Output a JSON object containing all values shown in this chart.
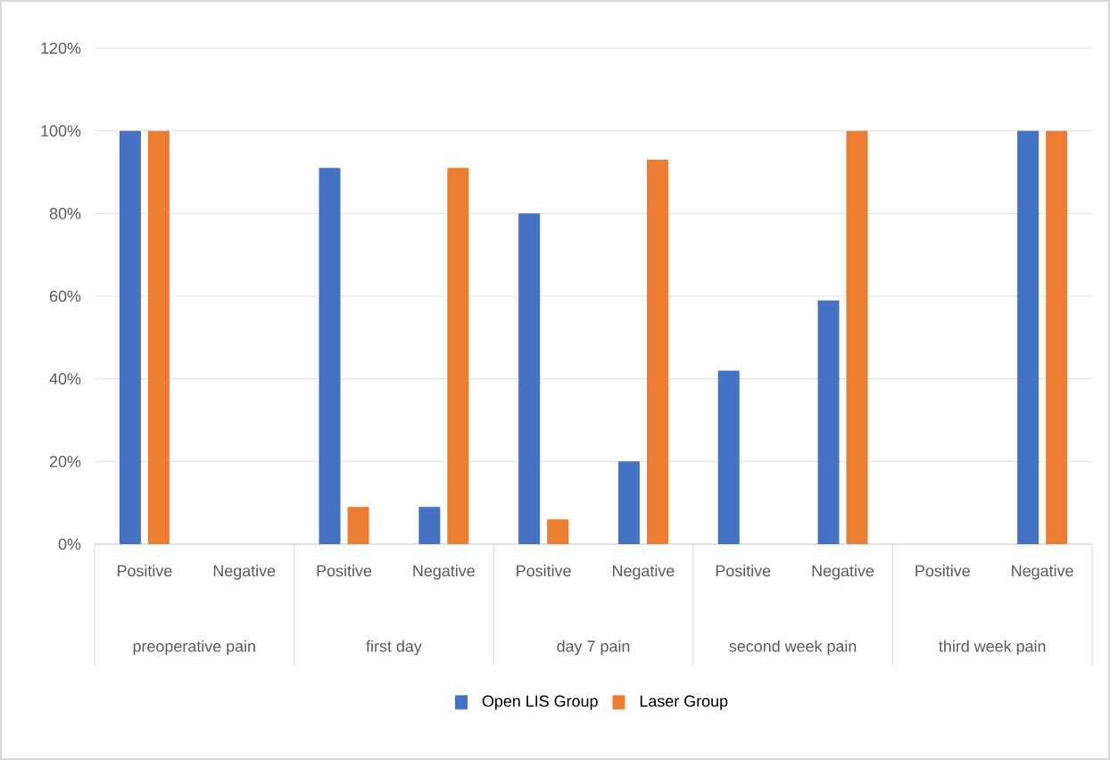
{
  "chart_data": {
    "type": "bar",
    "categories": [
      "Positive",
      "Negative",
      "Positive",
      "Negative",
      "Positive",
      "Negative",
      "Positive",
      "Negative",
      "Positive",
      "Negative"
    ],
    "annotations": [
      "preoperative pain",
      "first day",
      "day 7 pain",
      "second week pain",
      "third week pain"
    ],
    "series": [
      {
        "name": "Open LIS Group",
        "color": "#4472c4",
        "values": [
          100,
          0,
          91,
          9,
          80,
          20,
          42,
          59,
          0,
          100
        ]
      },
      {
        "name": "Laser Group",
        "color": "#ed7d31",
        "values": [
          100,
          0,
          9,
          91,
          6,
          93,
          0,
          100,
          0,
          100
        ]
      }
    ],
    "ylim": [
      0,
      120
    ],
    "yticks": [
      {
        "value": 0,
        "label": "0%"
      },
      {
        "value": 20,
        "label": "20%"
      },
      {
        "value": 40,
        "label": "40%"
      },
      {
        "value": 60,
        "label": "60%"
      },
      {
        "value": 80,
        "label": "80%"
      },
      {
        "value": 100,
        "label": "100%"
      },
      {
        "value": 120,
        "label": "120%"
      }
    ],
    "grid": "y",
    "legend": "bottom"
  }
}
